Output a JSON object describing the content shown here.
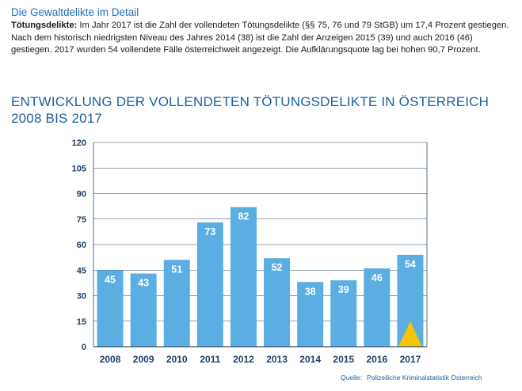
{
  "section_heading": "Die Gewaltdelikte im Detail",
  "intro": {
    "label": "Tötungsdelikte:",
    "text": " Im Jahr 2017 ist die Zahl der vollendeten Tötungsdelikte (§§ 75, 76 und 79 StGB) um 17,4 Prozent gestiegen. Nach dem historisch niedrigsten Niveau des Jahres 2014 (38) ist die Zahl der Anzeigen 2015 (39) und auch 2016 (46) gestiegen. 2017 wurden 54 vollendete Fälle österreichweit angezeigt. Die Aufklärungsquote lag bei hohen 90,7 Prozent."
  },
  "chart_title": "ENTWICKLUNG DER VOLLENDETEN TÖTUNGSDELIKTE  IN ÖSTERREICH 2008 BIS 2017",
  "source": {
    "label": "Quelle:",
    "text": "Polizeiliche Kriminalstatistik Österreich"
  },
  "chart_data": {
    "type": "bar",
    "categories": [
      "2008",
      "2009",
      "2010",
      "2011",
      "2012",
      "2013",
      "2014",
      "2015",
      "2016",
      "2017"
    ],
    "values": [
      45,
      43,
      51,
      73,
      82,
      52,
      38,
      39,
      46,
      54
    ],
    "ylim": [
      0,
      120
    ],
    "yticks": [
      0,
      15,
      30,
      45,
      60,
      75,
      90,
      105,
      120
    ],
    "grid": true,
    "data_labels": true,
    "bar_color": "#5aaee2",
    "label_color": "#ffffff",
    "highlight_marker": {
      "category": "2017",
      "shape": "triangle-up",
      "color": "#f7c400"
    }
  },
  "colors": {
    "heading": "#1f6fb5",
    "title": "#1b5f9c",
    "axis_text": "#1f3d66",
    "grid": "#2a4a6e"
  }
}
